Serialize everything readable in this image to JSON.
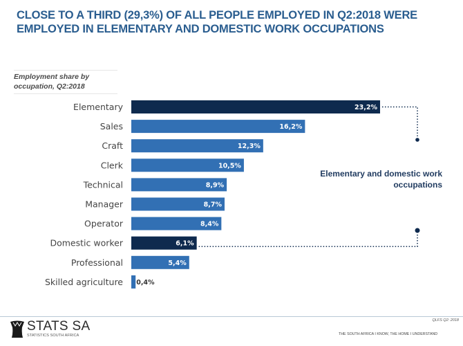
{
  "header": {
    "title_line1": "CLOSE TO A THIRD (29,3%) OF ALL PEOPLE EMPLOYED IN Q2:2018 WERE",
    "title_line2": "EMPLOYED IN ELEMENTARY AND DOMESTIC WORK OCCUPATIONS",
    "subtitle_line1": "Employment share by",
    "subtitle_line2": "occupation, Q2:2018"
  },
  "annotation": {
    "line1": "Elementary and domestic work",
    "line2": "occupations"
  },
  "colors": {
    "highlight": "#0e2a4e",
    "normal": "#3270b4",
    "title": "#2a5d8f",
    "connector": "#0e2a4e"
  },
  "chart_data": {
    "type": "bar",
    "orientation": "horizontal",
    "title": "Employment share by occupation, Q2:2018",
    "xlabel": "",
    "ylabel": "",
    "xlim": [
      0,
      25
    ],
    "grid": false,
    "categories": [
      "Elementary",
      "Sales",
      "Craft",
      "Clerk",
      "Technical",
      "Manager",
      "Operator",
      "Domestic worker",
      "Professional",
      "Skilled agriculture"
    ],
    "values": [
      23.2,
      16.2,
      12.3,
      10.5,
      8.9,
      8.7,
      8.4,
      6.1,
      5.4,
      0.4
    ],
    "labels": [
      "23,2%",
      "16,2%",
      "12,3%",
      "10,5%",
      "8,9%",
      "8,7%",
      "8,4%",
      "6,1%",
      "5,4%",
      "0,4%"
    ],
    "highlighted": [
      "Elementary",
      "Domestic worker"
    ],
    "unit": "%"
  },
  "footer": {
    "logo_main": "STATS SA",
    "logo_sub": "STATISTICS SOUTH AFRICA",
    "reference": "QLFS Q2: 2018",
    "slogan": "THE SOUTH AFRICA I KNOW, THE HOME I UNDERSTAND"
  }
}
